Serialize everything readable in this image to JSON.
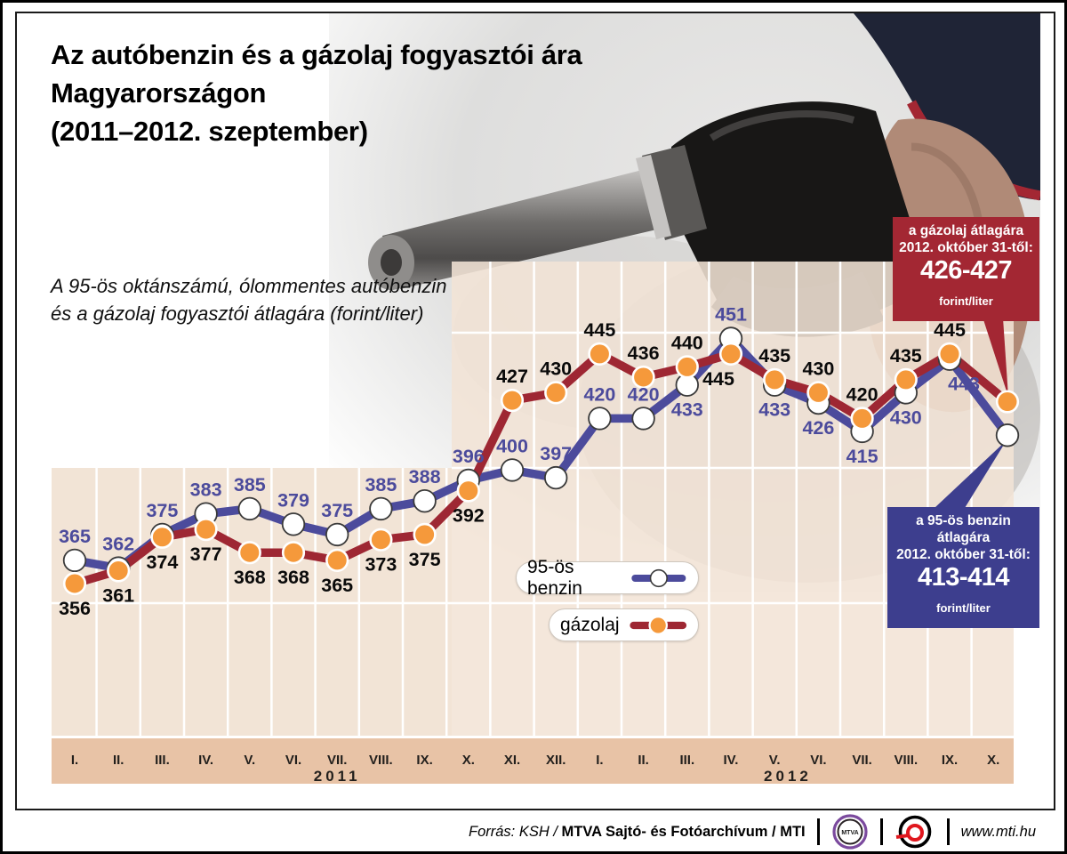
{
  "title": {
    "lines": [
      "Az autóbenzin és a gázolaj fogyasztói ára",
      "Magyarországon",
      "(2011–2012. szeptember)"
    ]
  },
  "subtitle": {
    "lines": [
      "A 95-ös oktánszámú, ólommentes autóbenzin",
      "és a gázolaj fogyasztói átlagára (forint/liter)"
    ]
  },
  "chart_data": {
    "type": "line",
    "title": "Az autóbenzin és a gázolaj fogyasztói ára Magyarországon (2011–2012. szeptember)",
    "unit": "forint/liter",
    "x_tick_labels": [
      "I.",
      "II.",
      "III.",
      "IV.",
      "V.",
      "VI.",
      "VII.",
      "VIII.",
      "IX.",
      "X.",
      "XI.",
      "XII.",
      "I.",
      "II.",
      "III.",
      "IV.",
      "V.",
      "VI.",
      "VII.",
      "VIII.",
      "IX.",
      "X."
    ],
    "year_labels": [
      {
        "label": "2011",
        "x_index": 6
      },
      {
        "label": "2012",
        "x_index": 16.3
      }
    ],
    "y_range_hint": [
      356,
      451
    ],
    "grid": true,
    "legend_position": "center-bottom",
    "colors": {
      "plot_bg": "#f2e4d6",
      "axis_strip": "#e8c3a6",
      "gridline": "#ffffff"
    },
    "series": [
      {
        "name": "95-ös benzin",
        "color": "#4c4b9c",
        "label_color": "#4c4b9c",
        "marker_fill": "#ffffff",
        "marker_stroke": "#3a3a3a",
        "values": [
          365,
          362,
          375,
          383,
          385,
          379,
          375,
          385,
          388,
          396,
          400,
          397,
          420,
          420,
          433,
          451,
          433,
          426,
          415,
          430,
          443
        ],
        "label_pos": [
          "above",
          "above",
          "above",
          "above",
          "above",
          "above",
          "above",
          "above",
          "above",
          "above",
          "above",
          "above",
          "above",
          "above",
          "below",
          "above",
          "below",
          "below",
          "below",
          "below",
          "below"
        ],
        "label_dx": [
          0,
          0,
          0,
          0,
          0,
          0,
          0,
          0,
          0,
          0,
          0,
          0,
          0,
          0,
          0,
          0,
          0,
          0,
          0,
          0,
          16
        ],
        "oct31_plot_value": 413.5
      },
      {
        "name": "gázolaj",
        "color": "#9e2733",
        "label_color": "#0a0a0a",
        "marker_fill": "#f5993b",
        "marker_stroke": "#ffffff",
        "values": [
          356,
          361,
          374,
          377,
          368,
          368,
          365,
          373,
          375,
          392,
          427,
          430,
          445,
          436,
          440,
          445,
          435,
          430,
          420,
          435,
          445
        ],
        "label_pos": [
          "below",
          "below",
          "below",
          "below",
          "below",
          "below",
          "below",
          "below",
          "below",
          "below",
          "above",
          "above",
          "above",
          "above",
          "above",
          "below",
          "above",
          "above",
          "above",
          "above",
          "above"
        ],
        "label_dx": [
          0,
          0,
          0,
          0,
          0,
          0,
          0,
          0,
          0,
          0,
          0,
          0,
          0,
          0,
          0,
          -14,
          0,
          0,
          0,
          0,
          0
        ],
        "oct31_plot_value": 426.5
      }
    ]
  },
  "legend": {
    "items": [
      {
        "label": "95-ös benzin"
      },
      {
        "label": "gázolaj"
      }
    ]
  },
  "callouts": {
    "diesel": {
      "line1": "a gázolaj átlagára",
      "line2": "2012. október 31-től:",
      "value": "426-427",
      "unit": "forint/liter",
      "bg": "#a32733"
    },
    "petrol": {
      "line1": "a 95-ös benzin átlagára",
      "line2": "2012. október 31-től:",
      "value": "413-414",
      "unit": "forint/liter",
      "bg": "#3d3e8e"
    }
  },
  "footer": {
    "source_prefix": "Forrás: KSH / ",
    "source_bold": "MTVA Sajtó- és Fotóarchívum / MTI",
    "mtva_logo_text": "MTVA",
    "website": "www.mti.hu"
  }
}
